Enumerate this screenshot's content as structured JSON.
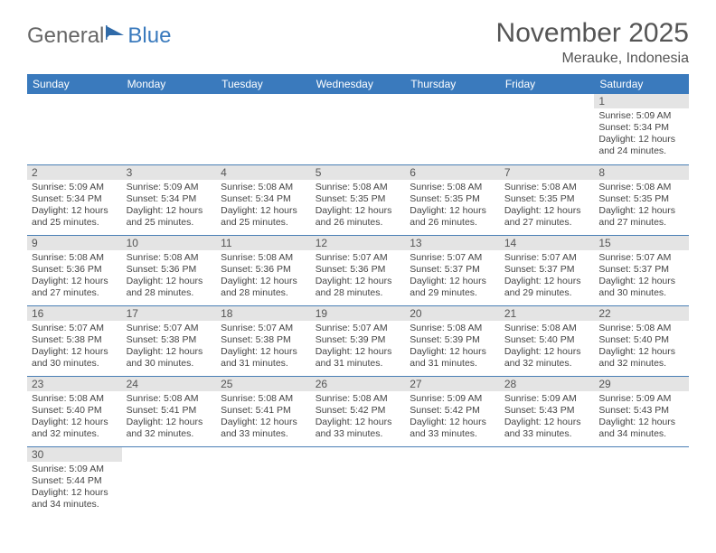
{
  "logo": {
    "text1": "General",
    "text2": "Blue"
  },
  "title": "November 2025",
  "location": "Merauke, Indonesia",
  "colors": {
    "header_bg": "#3a7abd",
    "header_text": "#ffffff",
    "daynum_bg": "#e4e4e4",
    "border": "#4a7fb5",
    "text": "#444444"
  },
  "weekdays": [
    "Sunday",
    "Monday",
    "Tuesday",
    "Wednesday",
    "Thursday",
    "Friday",
    "Saturday"
  ],
  "weeks": [
    [
      null,
      null,
      null,
      null,
      null,
      null,
      {
        "n": "1",
        "sr": "Sunrise: 5:09 AM",
        "ss": "Sunset: 5:34 PM",
        "d1": "Daylight: 12 hours",
        "d2": "and 24 minutes."
      }
    ],
    [
      {
        "n": "2",
        "sr": "Sunrise: 5:09 AM",
        "ss": "Sunset: 5:34 PM",
        "d1": "Daylight: 12 hours",
        "d2": "and 25 minutes."
      },
      {
        "n": "3",
        "sr": "Sunrise: 5:09 AM",
        "ss": "Sunset: 5:34 PM",
        "d1": "Daylight: 12 hours",
        "d2": "and 25 minutes."
      },
      {
        "n": "4",
        "sr": "Sunrise: 5:08 AM",
        "ss": "Sunset: 5:34 PM",
        "d1": "Daylight: 12 hours",
        "d2": "and 25 minutes."
      },
      {
        "n": "5",
        "sr": "Sunrise: 5:08 AM",
        "ss": "Sunset: 5:35 PM",
        "d1": "Daylight: 12 hours",
        "d2": "and 26 minutes."
      },
      {
        "n": "6",
        "sr": "Sunrise: 5:08 AM",
        "ss": "Sunset: 5:35 PM",
        "d1": "Daylight: 12 hours",
        "d2": "and 26 minutes."
      },
      {
        "n": "7",
        "sr": "Sunrise: 5:08 AM",
        "ss": "Sunset: 5:35 PM",
        "d1": "Daylight: 12 hours",
        "d2": "and 27 minutes."
      },
      {
        "n": "8",
        "sr": "Sunrise: 5:08 AM",
        "ss": "Sunset: 5:35 PM",
        "d1": "Daylight: 12 hours",
        "d2": "and 27 minutes."
      }
    ],
    [
      {
        "n": "9",
        "sr": "Sunrise: 5:08 AM",
        "ss": "Sunset: 5:36 PM",
        "d1": "Daylight: 12 hours",
        "d2": "and 27 minutes."
      },
      {
        "n": "10",
        "sr": "Sunrise: 5:08 AM",
        "ss": "Sunset: 5:36 PM",
        "d1": "Daylight: 12 hours",
        "d2": "and 28 minutes."
      },
      {
        "n": "11",
        "sr": "Sunrise: 5:08 AM",
        "ss": "Sunset: 5:36 PM",
        "d1": "Daylight: 12 hours",
        "d2": "and 28 minutes."
      },
      {
        "n": "12",
        "sr": "Sunrise: 5:07 AM",
        "ss": "Sunset: 5:36 PM",
        "d1": "Daylight: 12 hours",
        "d2": "and 28 minutes."
      },
      {
        "n": "13",
        "sr": "Sunrise: 5:07 AM",
        "ss": "Sunset: 5:37 PM",
        "d1": "Daylight: 12 hours",
        "d2": "and 29 minutes."
      },
      {
        "n": "14",
        "sr": "Sunrise: 5:07 AM",
        "ss": "Sunset: 5:37 PM",
        "d1": "Daylight: 12 hours",
        "d2": "and 29 minutes."
      },
      {
        "n": "15",
        "sr": "Sunrise: 5:07 AM",
        "ss": "Sunset: 5:37 PM",
        "d1": "Daylight: 12 hours",
        "d2": "and 30 minutes."
      }
    ],
    [
      {
        "n": "16",
        "sr": "Sunrise: 5:07 AM",
        "ss": "Sunset: 5:38 PM",
        "d1": "Daylight: 12 hours",
        "d2": "and 30 minutes."
      },
      {
        "n": "17",
        "sr": "Sunrise: 5:07 AM",
        "ss": "Sunset: 5:38 PM",
        "d1": "Daylight: 12 hours",
        "d2": "and 30 minutes."
      },
      {
        "n": "18",
        "sr": "Sunrise: 5:07 AM",
        "ss": "Sunset: 5:38 PM",
        "d1": "Daylight: 12 hours",
        "d2": "and 31 minutes."
      },
      {
        "n": "19",
        "sr": "Sunrise: 5:07 AM",
        "ss": "Sunset: 5:39 PM",
        "d1": "Daylight: 12 hours",
        "d2": "and 31 minutes."
      },
      {
        "n": "20",
        "sr": "Sunrise: 5:08 AM",
        "ss": "Sunset: 5:39 PM",
        "d1": "Daylight: 12 hours",
        "d2": "and 31 minutes."
      },
      {
        "n": "21",
        "sr": "Sunrise: 5:08 AM",
        "ss": "Sunset: 5:40 PM",
        "d1": "Daylight: 12 hours",
        "d2": "and 32 minutes."
      },
      {
        "n": "22",
        "sr": "Sunrise: 5:08 AM",
        "ss": "Sunset: 5:40 PM",
        "d1": "Daylight: 12 hours",
        "d2": "and 32 minutes."
      }
    ],
    [
      {
        "n": "23",
        "sr": "Sunrise: 5:08 AM",
        "ss": "Sunset: 5:40 PM",
        "d1": "Daylight: 12 hours",
        "d2": "and 32 minutes."
      },
      {
        "n": "24",
        "sr": "Sunrise: 5:08 AM",
        "ss": "Sunset: 5:41 PM",
        "d1": "Daylight: 12 hours",
        "d2": "and 32 minutes."
      },
      {
        "n": "25",
        "sr": "Sunrise: 5:08 AM",
        "ss": "Sunset: 5:41 PM",
        "d1": "Daylight: 12 hours",
        "d2": "and 33 minutes."
      },
      {
        "n": "26",
        "sr": "Sunrise: 5:08 AM",
        "ss": "Sunset: 5:42 PM",
        "d1": "Daylight: 12 hours",
        "d2": "and 33 minutes."
      },
      {
        "n": "27",
        "sr": "Sunrise: 5:09 AM",
        "ss": "Sunset: 5:42 PM",
        "d1": "Daylight: 12 hours",
        "d2": "and 33 minutes."
      },
      {
        "n": "28",
        "sr": "Sunrise: 5:09 AM",
        "ss": "Sunset: 5:43 PM",
        "d1": "Daylight: 12 hours",
        "d2": "and 33 minutes."
      },
      {
        "n": "29",
        "sr": "Sunrise: 5:09 AM",
        "ss": "Sunset: 5:43 PM",
        "d1": "Daylight: 12 hours",
        "d2": "and 34 minutes."
      }
    ],
    [
      {
        "n": "30",
        "sr": "Sunrise: 5:09 AM",
        "ss": "Sunset: 5:44 PM",
        "d1": "Daylight: 12 hours",
        "d2": "and 34 minutes."
      },
      null,
      null,
      null,
      null,
      null,
      null
    ]
  ]
}
